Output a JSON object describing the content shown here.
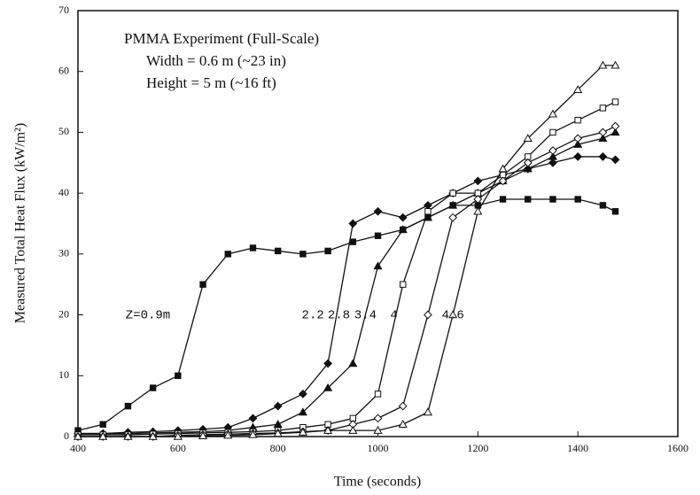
{
  "chart_data": {
    "type": "line",
    "annotations": [
      "PMMA Experiment  (Full-Scale)",
      "Width  = 0.6 m (~23 in)",
      "Height  = 5 m (~16 ft)"
    ],
    "x_label": "Time (seconds)",
    "y_label": "Measured Total Heat Flux (kW/m²)",
    "x": [
      400,
      450,
      500,
      550,
      600,
      650,
      700,
      750,
      800,
      850,
      900,
      950,
      1000,
      1050,
      1100,
      1150,
      1200,
      1250,
      1300,
      1350,
      1400,
      1450,
      1475
    ],
    "series": [
      {
        "name": "Z=0.9m",
        "color": "#111111",
        "marker": "square-filled",
        "values": [
          1,
          2,
          5,
          8,
          10,
          25,
          30,
          31,
          30.5,
          30,
          30.5,
          32,
          33,
          34,
          36,
          38,
          38,
          39,
          39,
          39,
          39,
          38,
          37
        ]
      },
      {
        "name": "2.2",
        "color": "#111111",
        "marker": "diamond-filled",
        "values": [
          0.5,
          0.5,
          0.7,
          0.8,
          1,
          1.2,
          1.5,
          3,
          5,
          7,
          12,
          35,
          37,
          36,
          38,
          40,
          42,
          43,
          44,
          45,
          46,
          46,
          45.5
        ]
      },
      {
        "name": "2.8",
        "color": "#111111",
        "marker": "triangle-filled",
        "values": [
          0.5,
          0.5,
          0.5,
          0.6,
          0.7,
          0.8,
          1,
          1.5,
          2,
          4,
          8,
          12,
          28,
          34,
          36,
          38,
          40,
          42,
          44,
          46,
          48,
          49,
          50
        ]
      },
      {
        "name": "3.4",
        "color": "#111111",
        "marker": "square-open",
        "values": [
          0.3,
          0.3,
          0.3,
          0.4,
          0.5,
          0.6,
          0.7,
          0.8,
          1,
          1.5,
          2,
          3,
          7,
          25,
          37,
          40,
          40,
          43,
          46,
          50,
          52,
          54,
          55
        ]
      },
      {
        "name": "4",
        "color": "#111111",
        "marker": "diamond-open",
        "values": [
          0,
          0,
          0,
          0,
          0.2,
          0.3,
          0.4,
          0.5,
          0.6,
          0.8,
          1,
          2,
          3,
          5,
          20,
          36,
          39,
          42,
          45,
          47,
          49,
          50,
          51
        ]
      },
      {
        "name": "4.6",
        "color": "#111111",
        "marker": "triangle-open",
        "values": [
          0,
          0,
          0,
          0,
          0,
          0.1,
          0.2,
          0.3,
          0.5,
          0.7,
          1,
          1,
          1,
          2,
          4,
          20,
          37,
          44,
          49,
          53,
          57,
          61,
          61
        ]
      }
    ],
    "xlim": [
      400,
      1600
    ],
    "xticks": [
      400,
      600,
      800,
      1000,
      1200,
      1400,
      1600
    ],
    "ylim": [
      0,
      70
    ],
    "yticks": [
      0,
      10,
      20,
      30,
      40,
      50,
      60,
      70
    ],
    "grid": false
  }
}
